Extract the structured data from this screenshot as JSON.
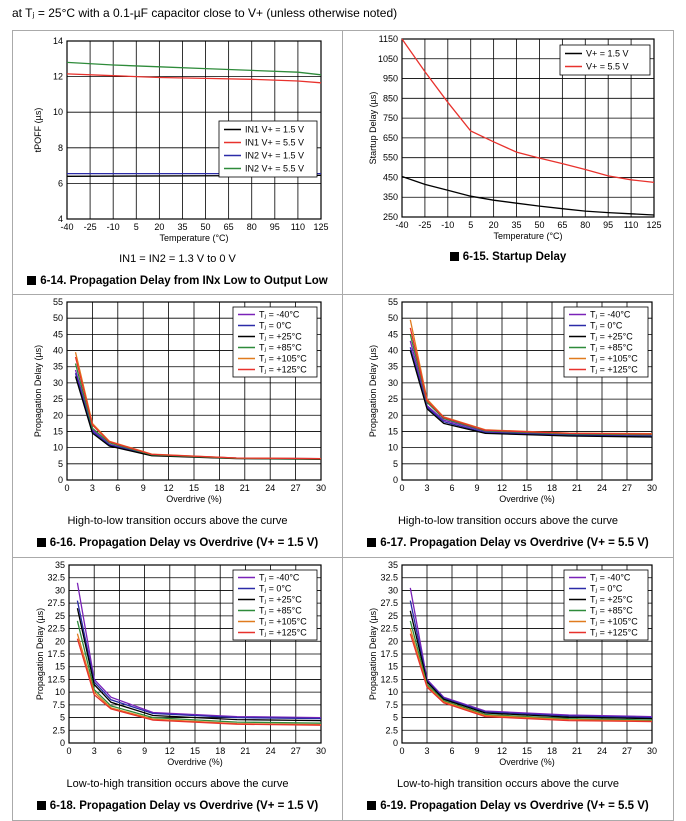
{
  "header": {
    "text": "at Tⱼ = 25°C with a 0.1-µF capacitor close to V+ (unless otherwise noted)"
  },
  "colors": {
    "red": "#e8322d",
    "black": "#000000",
    "blue": "#2b2ba8",
    "green": "#2e8b3a",
    "purple": "#7a22b8",
    "orange": "#e07b1e",
    "grid": "#000000"
  },
  "chart_data": [
    {
      "id": "fig-6-14",
      "type": "line",
      "caption_label": "6-14.",
      "caption": "Propagation Delay from INx Low to Output Low",
      "note": "IN1 = IN2 = 1.3 V to 0 V",
      "xlabel": "Temperature (°C)",
      "ylabel": "tPOFF (µs)",
      "xlim": [
        -40,
        125
      ],
      "ylim": [
        4,
        14
      ],
      "xticks": [
        -40,
        -25,
        -10,
        5,
        20,
        35,
        50,
        65,
        80,
        95,
        110,
        125
      ],
      "yticks": [
        4,
        6,
        8,
        10,
        12,
        14
      ],
      "grid": true,
      "legend_position": "center-right",
      "series": [
        {
          "name": "IN1 V+ = 1.5 V",
          "color": "black",
          "x": [
            -40,
            125
          ],
          "y": [
            6.4,
            6.45
          ]
        },
        {
          "name": "IN1 V+ = 5.5 V",
          "color": "red",
          "x": [
            -40,
            -10,
            20,
            50,
            80,
            110,
            125
          ],
          "y": [
            12.15,
            12.05,
            11.95,
            11.9,
            11.85,
            11.75,
            11.65
          ]
        },
        {
          "name": "IN2 V+ = 1.5 V",
          "color": "blue",
          "x": [
            -40,
            125
          ],
          "y": [
            6.55,
            6.55
          ]
        },
        {
          "name": "IN2 V+ = 5.5 V",
          "color": "green",
          "x": [
            -40,
            -10,
            20,
            50,
            80,
            110,
            125
          ],
          "y": [
            12.8,
            12.65,
            12.55,
            12.45,
            12.35,
            12.25,
            12.1
          ]
        }
      ]
    },
    {
      "id": "fig-6-15",
      "type": "line",
      "caption_label": "6-15.",
      "caption": "Startup Delay",
      "note": "",
      "xlabel": "Temperature (°C)",
      "ylabel": "Startup Delay (µs)",
      "xlim": [
        -40,
        125
      ],
      "ylim": [
        250,
        1150
      ],
      "xticks": [
        -40,
        -25,
        -10,
        5,
        20,
        35,
        50,
        65,
        80,
        95,
        110,
        125
      ],
      "yticks": [
        250,
        350,
        450,
        550,
        650,
        750,
        850,
        950,
        1050,
        1150
      ],
      "grid": true,
      "legend_position": "top-right",
      "series": [
        {
          "name": "V+ = 1.5 V",
          "color": "black",
          "x": [
            -40,
            -25,
            -10,
            5,
            20,
            35,
            50,
            65,
            80,
            95,
            110,
            125
          ],
          "y": [
            455,
            415,
            385,
            355,
            335,
            320,
            305,
            292,
            280,
            272,
            266,
            260
          ]
        },
        {
          "name": "V+ = 5.5 V",
          "color": "red",
          "x": [
            -40,
            -25,
            -10,
            5,
            20,
            35,
            50,
            65,
            80,
            95,
            110,
            125
          ],
          "y": [
            1150,
            985,
            830,
            685,
            630,
            578,
            548,
            520,
            490,
            458,
            438,
            425
          ]
        }
      ]
    },
    {
      "id": "fig-6-16",
      "type": "line",
      "caption_label": "6-16.",
      "caption": "Propagation Delay vs Overdrive (V+ = 1.5 V)",
      "note": "High-to-low transition occurs above the curve",
      "xlabel": "Overdrive (%)",
      "ylabel": "Propagation Delay (µs)",
      "xlim": [
        0,
        30
      ],
      "ylim": [
        0,
        55
      ],
      "xticks": [
        0,
        3,
        6,
        9,
        12,
        15,
        18,
        21,
        24,
        27,
        30
      ],
      "yticks": [
        0,
        5,
        10,
        15,
        20,
        25,
        30,
        35,
        40,
        45,
        50,
        55
      ],
      "grid": true,
      "legend_position": "top-right",
      "series": [
        {
          "name": "Tⱼ = -40°C",
          "color": "purple",
          "x": [
            1,
            3,
            5,
            10,
            20,
            30
          ],
          "y": [
            34,
            15.5,
            11,
            7.8,
            6.8,
            6.6
          ]
        },
        {
          "name": "Tⱼ = 0°C",
          "color": "blue",
          "x": [
            1,
            3,
            5,
            10,
            20,
            30
          ],
          "y": [
            33,
            15,
            10.8,
            7.6,
            6.7,
            6.5
          ]
        },
        {
          "name": "Tⱼ = +25°C",
          "color": "black",
          "x": [
            1,
            3,
            5,
            10,
            20,
            30
          ],
          "y": [
            32,
            14.5,
            10.5,
            7.5,
            6.6,
            6.4
          ]
        },
        {
          "name": "Tⱼ = +85°C",
          "color": "green",
          "x": [
            1,
            3,
            5,
            10,
            20,
            30
          ],
          "y": [
            36,
            16,
            11.5,
            7.8,
            6.7,
            6.5
          ]
        },
        {
          "name": "Tⱼ = +105°C",
          "color": "orange",
          "x": [
            1,
            3,
            5,
            10,
            20,
            30
          ],
          "y": [
            39.5,
            17.5,
            12,
            8,
            6.8,
            6.6
          ]
        },
        {
          "name": "Tⱼ = +125°C",
          "color": "red",
          "x": [
            1,
            3,
            5,
            10,
            20,
            30
          ],
          "y": [
            38,
            17,
            11.8,
            7.9,
            6.8,
            6.6
          ]
        }
      ]
    },
    {
      "id": "fig-6-17",
      "type": "line",
      "caption_label": "6-17.",
      "caption": "Propagation Delay vs Overdrive (V+ = 5.5 V)",
      "note": "High-to-low transition occurs above the curve",
      "xlabel": "Overdrive (%)",
      "ylabel": "Propagation Delay (µs)",
      "xlim": [
        0,
        30
      ],
      "ylim": [
        0,
        55
      ],
      "xticks": [
        0,
        3,
        6,
        9,
        12,
        15,
        18,
        21,
        24,
        27,
        30
      ],
      "yticks": [
        0,
        5,
        10,
        15,
        20,
        25,
        30,
        35,
        40,
        45,
        50,
        55
      ],
      "grid": true,
      "legend_position": "top-right",
      "series": [
        {
          "name": "Tⱼ = -40°C",
          "color": "purple",
          "x": [
            1,
            3,
            5,
            10,
            20,
            30
          ],
          "y": [
            43,
            23,
            18.5,
            15,
            14,
            13.8
          ]
        },
        {
          "name": "Tⱼ = 0°C",
          "color": "blue",
          "x": [
            1,
            3,
            5,
            10,
            20,
            30
          ],
          "y": [
            41,
            22.5,
            18,
            14.6,
            13.8,
            13.5
          ]
        },
        {
          "name": "Tⱼ = +25°C",
          "color": "black",
          "x": [
            1,
            3,
            5,
            10,
            20,
            30
          ],
          "y": [
            40,
            22,
            17.5,
            14.4,
            13.6,
            13.3
          ]
        },
        {
          "name": "Tⱼ = +85°C",
          "color": "green",
          "x": [
            1,
            3,
            5,
            10,
            20,
            30
          ],
          "y": [
            45,
            24,
            19,
            15.2,
            14.2,
            14
          ]
        },
        {
          "name": "Tⱼ = +105°C",
          "color": "orange",
          "x": [
            1,
            3,
            5,
            10,
            20,
            30
          ],
          "y": [
            49.5,
            25,
            19.5,
            15.5,
            14.5,
            14.3
          ]
        },
        {
          "name": "Tⱼ = +125°C",
          "color": "red",
          "x": [
            1,
            3,
            5,
            10,
            20,
            30
          ],
          "y": [
            47,
            24.5,
            19.3,
            15.4,
            14.4,
            14.2
          ]
        }
      ]
    },
    {
      "id": "fig-6-18",
      "type": "line",
      "caption_label": "6-18.",
      "caption": "Propagation Delay vs Overdrive (V+ = 1.5 V)",
      "note": "Low-to-high transition occurs above the curve",
      "xlabel": "Overdrive (%)",
      "ylabel": "Propagation Delay (µs)",
      "xlim": [
        0,
        30
      ],
      "ylim": [
        0,
        35
      ],
      "xticks": [
        0,
        3,
        6,
        9,
        12,
        15,
        18,
        21,
        24,
        27,
        30
      ],
      "yticks": [
        0,
        2.5,
        5,
        7.5,
        10,
        12.5,
        15,
        17.5,
        20,
        22.5,
        25,
        27.5,
        30,
        32.5,
        35
      ],
      "grid": true,
      "legend_position": "top-right",
      "series": [
        {
          "name": "Tⱼ = -40°C",
          "color": "purple",
          "x": [
            1,
            3,
            5,
            10,
            20,
            30
          ],
          "y": [
            31.5,
            12.5,
            9,
            6,
            5.2,
            5
          ]
        },
        {
          "name": "Tⱼ = 0°C",
          "color": "blue",
          "x": [
            1,
            3,
            5,
            10,
            20,
            30
          ],
          "y": [
            28,
            12,
            8.5,
            5.8,
            5,
            4.8
          ]
        },
        {
          "name": "Tⱼ = +25°C",
          "color": "black",
          "x": [
            1,
            3,
            5,
            10,
            20,
            30
          ],
          "y": [
            26.5,
            11.5,
            8,
            5.4,
            4.6,
            4.4
          ]
        },
        {
          "name": "Tⱼ = +85°C",
          "color": "green",
          "x": [
            1,
            3,
            5,
            10,
            20,
            30
          ],
          "y": [
            24,
            10.5,
            7.3,
            5,
            4.1,
            3.9
          ]
        },
        {
          "name": "Tⱼ = +105°C",
          "color": "orange",
          "x": [
            1,
            3,
            5,
            10,
            20,
            30
          ],
          "y": [
            21.5,
            10,
            6.9,
            4.7,
            3.8,
            3.6
          ]
        },
        {
          "name": "Tⱼ = +125°C",
          "color": "red",
          "x": [
            1,
            3,
            5,
            10,
            20,
            30
          ],
          "y": [
            20.5,
            9.5,
            6.7,
            4.5,
            3.7,
            3.5
          ]
        }
      ]
    },
    {
      "id": "fig-6-19",
      "type": "line",
      "caption_label": "6-19.",
      "caption": "Propagation Delay vs Overdrive (V+ = 5.5 V)",
      "note": "Low-to-high transition occurs above the curve",
      "xlabel": "Overdrive (%)",
      "ylabel": "Propagation Delay (µs)",
      "xlim": [
        0,
        30
      ],
      "ylim": [
        0,
        35
      ],
      "xticks": [
        0,
        3,
        6,
        9,
        12,
        15,
        18,
        21,
        24,
        27,
        30
      ],
      "yticks": [
        0,
        2.5,
        5,
        7.5,
        10,
        12.5,
        15,
        17.5,
        20,
        22.5,
        25,
        27.5,
        30,
        32.5,
        35
      ],
      "grid": true,
      "legend_position": "top-right",
      "series": [
        {
          "name": "Tⱼ = -40°C",
          "color": "purple",
          "x": [
            1,
            3,
            5,
            10,
            20,
            30
          ],
          "y": [
            30.5,
            12.5,
            9,
            6.3,
            5.5,
            5.2
          ]
        },
        {
          "name": "Tⱼ = 0°C",
          "color": "blue",
          "x": [
            1,
            3,
            5,
            10,
            20,
            30
          ],
          "y": [
            28,
            12.2,
            8.8,
            6.1,
            5.3,
            5
          ]
        },
        {
          "name": "Tⱼ = +25°C",
          "color": "black",
          "x": [
            1,
            3,
            5,
            10,
            20,
            30
          ],
          "y": [
            26,
            12,
            8.6,
            5.9,
            5.1,
            4.8
          ]
        },
        {
          "name": "Tⱼ = +85°C",
          "color": "green",
          "x": [
            1,
            3,
            5,
            10,
            20,
            30
          ],
          "y": [
            24,
            11.5,
            8.3,
            5.6,
            4.8,
            4.5
          ]
        },
        {
          "name": "Tⱼ = +105°C",
          "color": "orange",
          "x": [
            1,
            3,
            5,
            10,
            20,
            30
          ],
          "y": [
            22.5,
            11.2,
            8.1,
            5.4,
            4.6,
            4.3
          ]
        },
        {
          "name": "Tⱼ = +125°C",
          "color": "red",
          "x": [
            1,
            3,
            5,
            10,
            20,
            30
          ],
          "y": [
            21.5,
            11,
            7.9,
            5.2,
            4.4,
            4.2
          ]
        }
      ]
    }
  ]
}
